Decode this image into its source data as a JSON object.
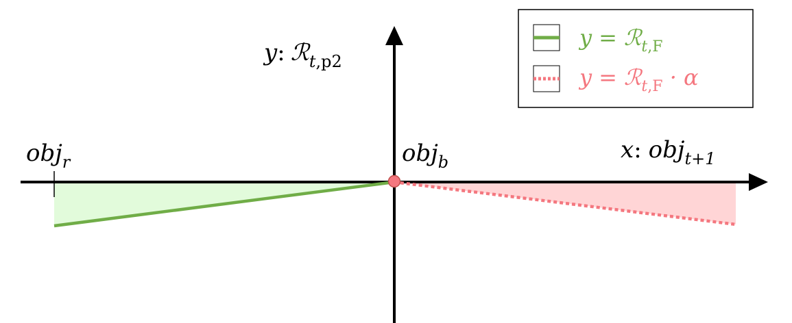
{
  "axes": {
    "y_label": {
      "var": "y",
      "colon": ":",
      "symbol": "ℛ",
      "sub_italic": "t",
      "sub_comma": ",",
      "sub_upright": "p2"
    },
    "x_label": {
      "var": "x",
      "colon": ":",
      "base": "obj",
      "sub": "t+1"
    },
    "obj_r": {
      "base": "obj",
      "sub": "r"
    },
    "obj_b": {
      "base": "obj",
      "sub": "b"
    }
  },
  "legend": {
    "entries": [
      {
        "lhs": "y",
        "eq": "=",
        "symbol": "ℛ",
        "sub_italic": "t",
        "sub_comma": ",",
        "sub_upright": "F",
        "tail": "",
        "color": "#70AD47",
        "style": "solid"
      },
      {
        "lhs": "y",
        "eq": "=",
        "symbol": "ℛ",
        "sub_italic": "t",
        "sub_comma": ",",
        "sub_upright": "F",
        "tail": " · α",
        "color": "#F4777F",
        "style": "dotted"
      }
    ]
  },
  "colors": {
    "axis": "#000000",
    "green_line": "#70AD47",
    "green_fill": "#E2FBDB",
    "red_line": "#F4777F",
    "red_fill": "#FFD5D6",
    "origin_point": "#F4777F"
  }
}
